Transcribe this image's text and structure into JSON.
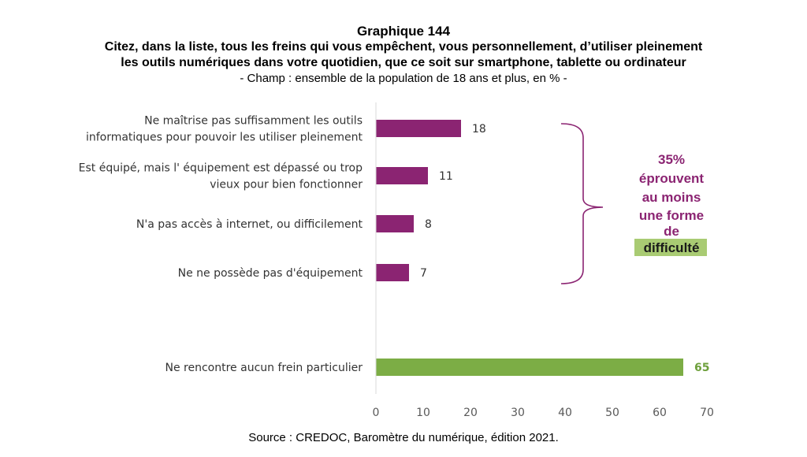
{
  "title": "Graphique 144",
  "subtitle_line1": "Citez, dans la liste, tous les freins qui vous empêchent, vous personnellement, d’utiliser pleinement",
  "subtitle_line2": "les outils numériques dans votre quotidien, que ce soit sur smartphone, tablette ou ordinateur",
  "scope": "- Champ : ensemble de la population de 18 ans et plus, en % -",
  "source": "Source : CREDOC, Baromètre du numérique, édition 2021.",
  "colors": {
    "purple": "#8b2472",
    "green": "#7cad45",
    "highlight": "#a9cb73"
  },
  "annotation": {
    "lines": [
      "35%",
      "éprouvent",
      "au moins",
      "une forme",
      "de",
      "difficulté"
    ],
    "highlighted_line": "difficulté"
  },
  "chart_data": {
    "type": "bar",
    "orientation": "horizontal",
    "categories": [
      [
        "Ne maîtrise pas suffisamment les outils",
        "informatiques pour pouvoir les utiliser pleinement"
      ],
      [
        "Est équipé, mais l' équipement est dépassé ou trop",
        "vieux pour bien fonctionner"
      ],
      [
        "N'a pas accès à internet, ou difficilement"
      ],
      [
        "Ne ne possède pas d'équipement"
      ],
      [
        "Ne rencontre aucun frein particulier"
      ]
    ],
    "values": [
      18,
      11,
      8,
      7,
      65
    ],
    "bar_colors": [
      "purple",
      "purple",
      "purple",
      "purple",
      "green"
    ],
    "xlim": [
      0,
      70
    ],
    "xticks": [
      0,
      10,
      20,
      30,
      40,
      50,
      60,
      70
    ],
    "grid": false,
    "legend": "none"
  }
}
